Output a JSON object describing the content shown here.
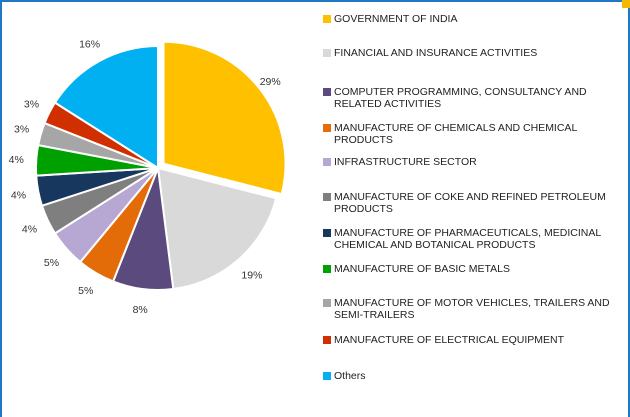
{
  "chart_data": {
    "type": "pie",
    "slices": [
      {
        "label": "GOVERNMENT OF INDIA",
        "value": 29,
        "display": "29%",
        "color": "#FFC000"
      },
      {
        "label": "FINANCIAL AND INSURANCE ACTIVITIES",
        "value": 19,
        "display": "19%",
        "color": "#D9D9D9"
      },
      {
        "label": "COMPUTER PROGRAMMING, CONSULTANCY AND RELATED ACTIVITIES",
        "value": 8,
        "display": "8%",
        "color": "#5B4A7E"
      },
      {
        "label": "MANUFACTURE OF CHEMICALS AND CHEMICAL PRODUCTS",
        "value": 5,
        "display": "5%",
        "color": "#E36C09"
      },
      {
        "label": "INFRASTRUCTURE SECTOR",
        "value": 5,
        "display": "5%",
        "color": "#B7A7D3"
      },
      {
        "label": "MANUFACTURE OF COKE AND REFINED PETROLEUM PRODUCTS",
        "value": 4,
        "display": "4%",
        "color": "#7F7F7F"
      },
      {
        "label": "MANUFACTURE OF PHARMACEUTICALS, MEDICINAL CHEMICAL AND BOTANICAL PRODUCTS",
        "value": 4,
        "display": "4%",
        "color": "#17375E"
      },
      {
        "label": "MANUFACTURE OF BASIC METALS",
        "value": 4,
        "display": "4%",
        "color": "#00A000"
      },
      {
        "label": "MANUFACTURE OF MOTOR VEHICLES, TRAILERS AND SEMI-TRAILERS",
        "value": 3,
        "display": "3%",
        "color": "#A6A6A6"
      },
      {
        "label": "MANUFACTURE OF ELECTRICAL EQUIPMENT",
        "value": 3,
        "display": "3%",
        "color": "#D03000"
      },
      {
        "label": "Others",
        "value": 16,
        "display": "16%",
        "color": "#00B0F0"
      }
    ],
    "legend_position": "right",
    "first_slice_exploded": true
  }
}
